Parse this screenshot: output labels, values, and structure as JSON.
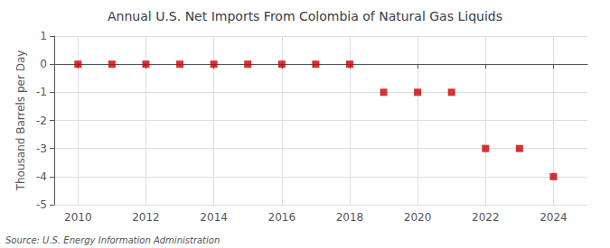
{
  "chart_data": {
    "type": "scatter",
    "title": "Annual U.S. Net Imports From Colombia of Natural Gas Liquids",
    "ylabel": "Thousand Barrels per Day",
    "annotations": [
      "Source: U.S. Energy Information Administration"
    ],
    "x": [
      2010,
      2011,
      2012,
      2013,
      2014,
      2015,
      2016,
      2017,
      2018,
      2019,
      2020,
      2021,
      2022,
      2023,
      2024
    ],
    "values": [
      0,
      0,
      0,
      0,
      0,
      0,
      0,
      0,
      0,
      -1,
      -1,
      -1,
      -3,
      -3,
      -4
    ],
    "color": "#cc0000",
    "marker": "square",
    "xlim": [
      2009.3,
      2025.0
    ],
    "xticks": [
      2010,
      2012,
      2014,
      2016,
      2018,
      2020,
      2022,
      2024
    ],
    "ylim": [
      -5.0,
      1.0
    ],
    "yticks": [
      -5,
      -4,
      -3,
      -2,
      -1,
      0,
      1
    ],
    "grid": true
  }
}
